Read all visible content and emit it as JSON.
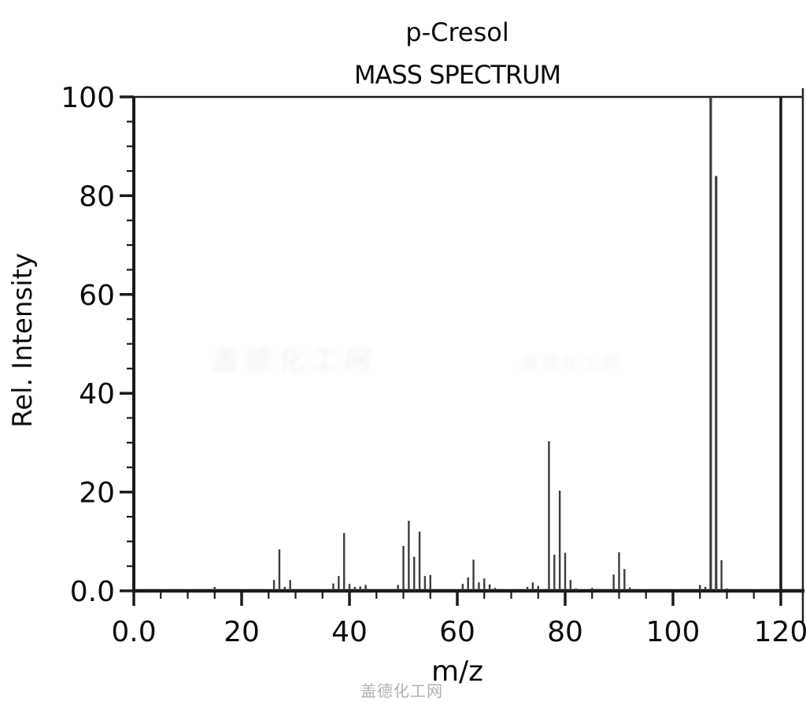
{
  "page": {
    "background": "#ffffff"
  },
  "watermark": {
    "text": "盖德化工网"
  },
  "chart_data": {
    "type": "bar",
    "subtype": "mass-spectrum-stick-plot",
    "title": "p-Cresol",
    "subtitle": "MASS SPECTRUM",
    "xlabel": "m/z",
    "ylabel": "Rel. Intensity",
    "xlim": [
      0,
      120
    ],
    "ylim": [
      0,
      100
    ],
    "grid": false,
    "legend": false,
    "x_tick_values": [
      0,
      20,
      40,
      60,
      80,
      100,
      120
    ],
    "x_tick_labels": [
      "0.0",
      "20",
      "40",
      "60",
      "80",
      "100",
      "120"
    ],
    "y_tick_values": [
      0,
      20,
      40,
      60,
      80,
      100
    ],
    "y_tick_labels": [
      "0.0",
      "20",
      "40",
      "60",
      "80",
      "100"
    ],
    "minor_tick_step": 5,
    "base_peak": {
      "mz": 107,
      "intensity": 100
    },
    "peaks": [
      {
        "mz": 15,
        "intensity": 0.8
      },
      {
        "mz": 26,
        "intensity": 2.2
      },
      {
        "mz": 27,
        "intensity": 8.4
      },
      {
        "mz": 28,
        "intensity": 0.8
      },
      {
        "mz": 29,
        "intensity": 2.2
      },
      {
        "mz": 37,
        "intensity": 1.5
      },
      {
        "mz": 38,
        "intensity": 3.0
      },
      {
        "mz": 39,
        "intensity": 11.7
      },
      {
        "mz": 40,
        "intensity": 1.4
      },
      {
        "mz": 41,
        "intensity": 0.8
      },
      {
        "mz": 42,
        "intensity": 0.9
      },
      {
        "mz": 43,
        "intensity": 1.2
      },
      {
        "mz": 49,
        "intensity": 1.2
      },
      {
        "mz": 50,
        "intensity": 9.1
      },
      {
        "mz": 51,
        "intensity": 14.2
      },
      {
        "mz": 52,
        "intensity": 6.9
      },
      {
        "mz": 53,
        "intensity": 12.0
      },
      {
        "mz": 54,
        "intensity": 3.0
      },
      {
        "mz": 55,
        "intensity": 3.2
      },
      {
        "mz": 61,
        "intensity": 1.4
      },
      {
        "mz": 62,
        "intensity": 2.7
      },
      {
        "mz": 63,
        "intensity": 6.3
      },
      {
        "mz": 64,
        "intensity": 1.7
      },
      {
        "mz": 65,
        "intensity": 2.5
      },
      {
        "mz": 66,
        "intensity": 1.3
      },
      {
        "mz": 67,
        "intensity": 0.6
      },
      {
        "mz": 73,
        "intensity": 0.8
      },
      {
        "mz": 74,
        "intensity": 1.7
      },
      {
        "mz": 75,
        "intensity": 1.0
      },
      {
        "mz": 77,
        "intensity": 30.3
      },
      {
        "mz": 78,
        "intensity": 7.3
      },
      {
        "mz": 79,
        "intensity": 20.3
      },
      {
        "mz": 80,
        "intensity": 7.7
      },
      {
        "mz": 81,
        "intensity": 2.2
      },
      {
        "mz": 82,
        "intensity": 0.5
      },
      {
        "mz": 85,
        "intensity": 0.6
      },
      {
        "mz": 86,
        "intensity": 0.4
      },
      {
        "mz": 89,
        "intensity": 3.3
      },
      {
        "mz": 90,
        "intensity": 7.8
      },
      {
        "mz": 91,
        "intensity": 4.4
      },
      {
        "mz": 92,
        "intensity": 0.7
      },
      {
        "mz": 105,
        "intensity": 1.2
      },
      {
        "mz": 106,
        "intensity": 0.8
      },
      {
        "mz": 107,
        "intensity": 100
      },
      {
        "mz": 108,
        "intensity": 84
      },
      {
        "mz": 109,
        "intensity": 6.2
      },
      {
        "mz": 110,
        "intensity": 0.5
      }
    ],
    "colors": {
      "peak": "#3d3d3d",
      "axis": "#1a1a1a",
      "text": "#0d0d0d",
      "watermark": "#b0b0b0",
      "background": "#ffffff"
    }
  }
}
